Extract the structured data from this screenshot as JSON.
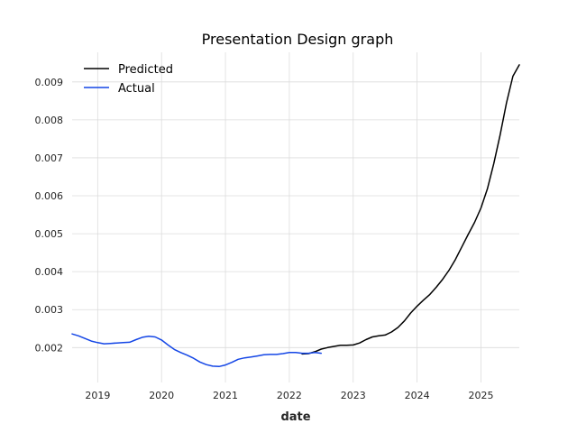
{
  "chart_data": {
    "type": "line",
    "title": "Presentation Design graph",
    "xlabel": "date",
    "ylabel": "",
    "xlim": [
      2018.6,
      2025.6
    ],
    "ylim": [
      0.00108,
      0.00978
    ],
    "grid": true,
    "legend_placement": "top-left",
    "x_ticks": [
      2019,
      2020,
      2021,
      2022,
      2023,
      2024,
      2025
    ],
    "x_tick_labels": [
      "2019",
      "2020",
      "2021",
      "2022",
      "2023",
      "2024",
      "2025"
    ],
    "y_ticks": [
      0.002,
      0.003,
      0.004,
      0.005,
      0.006,
      0.007,
      0.008,
      0.009
    ],
    "y_tick_labels": [
      "0.002",
      "0.003",
      "0.004",
      "0.005",
      "0.006",
      "0.007",
      "0.008",
      "0.009"
    ],
    "series": [
      {
        "name": "Predicted",
        "color": "#000000",
        "points": [
          [
            2022.2,
            0.00183
          ],
          [
            2022.3,
            0.00184
          ],
          [
            2022.4,
            0.00189
          ],
          [
            2022.5,
            0.00196
          ],
          [
            2022.6,
            0.002
          ],
          [
            2022.7,
            0.00203
          ],
          [
            2022.8,
            0.00206
          ],
          [
            2022.9,
            0.00206
          ],
          [
            2023.0,
            0.00207
          ],
          [
            2023.1,
            0.00212
          ],
          [
            2023.2,
            0.00221
          ],
          [
            2023.3,
            0.00228
          ],
          [
            2023.4,
            0.00231
          ],
          [
            2023.5,
            0.00233
          ],
          [
            2023.6,
            0.00241
          ],
          [
            2023.7,
            0.00253
          ],
          [
            2023.8,
            0.0027
          ],
          [
            2023.9,
            0.00291
          ],
          [
            2024.0,
            0.00309
          ],
          [
            2024.1,
            0.00325
          ],
          [
            2024.2,
            0.0034
          ],
          [
            2024.3,
            0.00359
          ],
          [
            2024.4,
            0.0038
          ],
          [
            2024.5,
            0.00404
          ],
          [
            2024.6,
            0.00432
          ],
          [
            2024.7,
            0.00465
          ],
          [
            2024.8,
            0.00498
          ],
          [
            2024.9,
            0.0053
          ],
          [
            2025.0,
            0.00568
          ],
          [
            2025.1,
            0.00618
          ],
          [
            2025.2,
            0.00685
          ],
          [
            2025.3,
            0.0076
          ],
          [
            2025.4,
            0.00845
          ],
          [
            2025.5,
            0.00915
          ],
          [
            2025.6,
            0.00945
          ]
        ]
      },
      {
        "name": "Actual",
        "color": "#1446e6",
        "points": [
          [
            2018.6,
            0.00236
          ],
          [
            2018.7,
            0.00231
          ],
          [
            2018.8,
            0.00224
          ],
          [
            2018.9,
            0.00217
          ],
          [
            2019.0,
            0.00213
          ],
          [
            2019.1,
            0.0021
          ],
          [
            2019.2,
            0.00211
          ],
          [
            2019.3,
            0.00212
          ],
          [
            2019.4,
            0.00213
          ],
          [
            2019.5,
            0.00214
          ],
          [
            2019.6,
            0.00221
          ],
          [
            2019.7,
            0.00227
          ],
          [
            2019.8,
            0.0023
          ],
          [
            2019.9,
            0.00228
          ],
          [
            2020.0,
            0.0022
          ],
          [
            2020.1,
            0.00207
          ],
          [
            2020.2,
            0.00195
          ],
          [
            2020.3,
            0.00187
          ],
          [
            2020.4,
            0.0018
          ],
          [
            2020.5,
            0.00172
          ],
          [
            2020.6,
            0.00162
          ],
          [
            2020.7,
            0.00155
          ],
          [
            2020.8,
            0.00151
          ],
          [
            2020.9,
            0.0015
          ],
          [
            2021.0,
            0.00154
          ],
          [
            2021.1,
            0.00161
          ],
          [
            2021.2,
            0.00169
          ],
          [
            2021.3,
            0.00173
          ],
          [
            2021.4,
            0.00175
          ],
          [
            2021.5,
            0.00178
          ],
          [
            2021.6,
            0.00181
          ],
          [
            2021.7,
            0.00182
          ],
          [
            2021.8,
            0.00182
          ],
          [
            2021.9,
            0.00184
          ],
          [
            2022.0,
            0.00187
          ],
          [
            2022.1,
            0.00187
          ],
          [
            2022.2,
            0.00185
          ],
          [
            2022.3,
            0.00185
          ],
          [
            2022.4,
            0.00187
          ],
          [
            2022.5,
            0.00185
          ]
        ]
      }
    ]
  }
}
